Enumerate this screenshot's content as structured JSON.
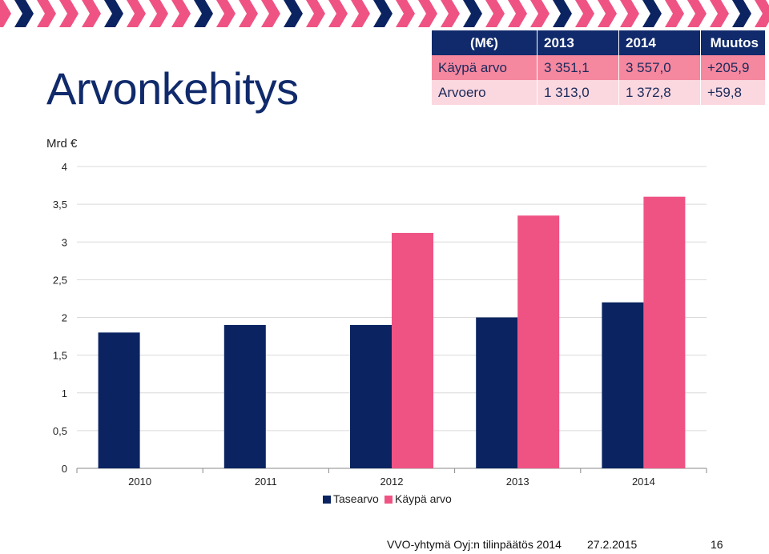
{
  "title": "Arvonkehitys",
  "table": {
    "headers": [
      "(M€)",
      "2013",
      "2014",
      "Muutos"
    ],
    "rows": [
      [
        "Käypä arvo",
        "3 351,1",
        "3 557,0",
        "+205,9"
      ],
      [
        "Arvoero",
        "1 313,0",
        "1 372,8",
        "+59,8"
      ]
    ]
  },
  "chart_data": {
    "type": "bar",
    "unit_label": "Mrd €",
    "categories": [
      "2010",
      "2011",
      "2012",
      "2013",
      "2014"
    ],
    "series": [
      {
        "name": "Tasearvo",
        "color": "#0b2461",
        "values": [
          1.8,
          1.9,
          1.9,
          2.0,
          2.2
        ]
      },
      {
        "name": "Käypä arvo",
        "color": "#ef5384",
        "values": [
          null,
          null,
          3.12,
          3.35,
          3.6
        ]
      }
    ],
    "y_ticks": [
      "0",
      "0,5",
      "1",
      "1,5",
      "2",
      "2,5",
      "3",
      "3,5",
      "4"
    ],
    "ylim": [
      0,
      4
    ],
    "grid": true,
    "legend": "bottom"
  },
  "footer": {
    "text": "VVO-yhtymä Oyj:n tilinpäätös 2014",
    "date": "27.2.2015",
    "page": "16"
  }
}
